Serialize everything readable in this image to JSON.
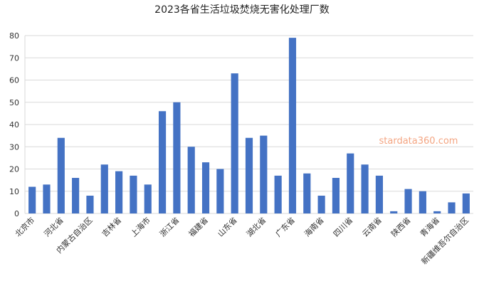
{
  "chart_data": {
    "type": "bar",
    "title": "2023各省生活垃圾焚烧无害化处理厂数",
    "categories": [
      "北京市",
      null,
      "河北省",
      null,
      "内蒙古自治区",
      null,
      "吉林省",
      null,
      "上海市",
      null,
      "浙江省",
      null,
      "福建省",
      null,
      "山东省",
      null,
      "湖北省",
      null,
      "广东省",
      null,
      "海南省",
      null,
      "四川省",
      null,
      "云南省",
      null,
      "陕西省",
      null,
      "青海省",
      null,
      "新疆维吾尔自治区"
    ],
    "values": [
      12,
      13,
      34,
      16,
      8,
      22,
      19,
      17,
      13,
      46,
      50,
      30,
      23,
      20,
      63,
      34,
      35,
      17,
      79,
      18,
      8,
      16,
      27,
      22,
      17,
      1,
      11,
      10,
      1,
      5,
      9
    ],
    "color": "#4472c4",
    "ylim": [
      0,
      80
    ],
    "yticks": [
      0,
      10,
      20,
      30,
      40,
      50,
      60,
      70,
      80
    ],
    "grid": true,
    "watermark": "stardata360.com"
  }
}
